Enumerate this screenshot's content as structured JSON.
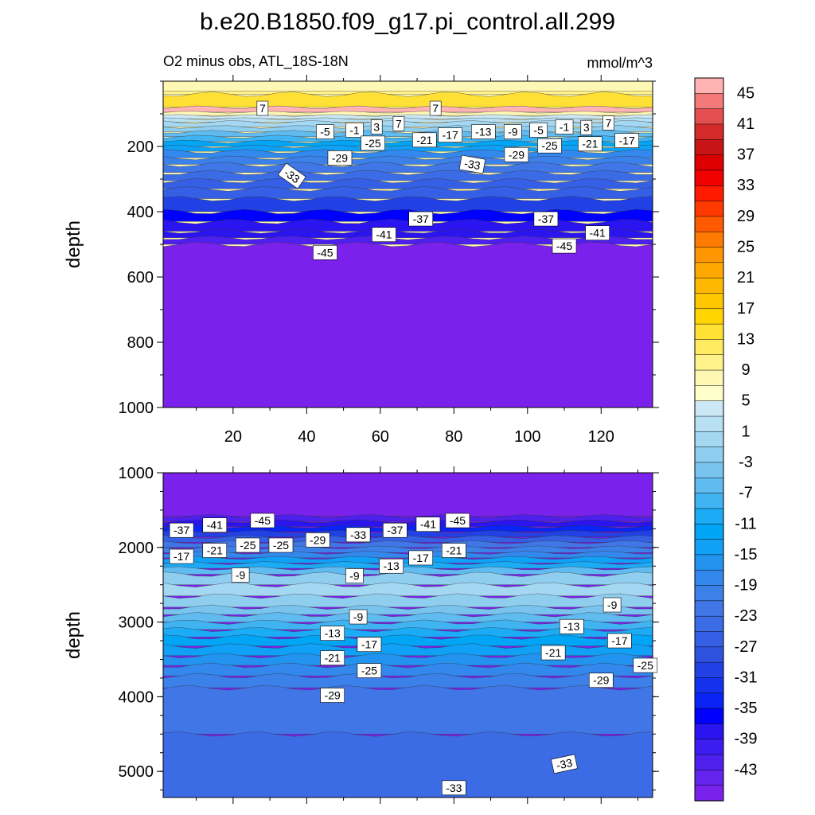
{
  "title": "b.e20.B1850.f09_g17.pi_control.all.299",
  "subtitle_left": "O2 minus obs, ATL_18S-18N",
  "subtitle_right": "mmol/m^3",
  "chart_data": [
    {
      "type": "contour",
      "panel": "upper",
      "ylabel": "depth",
      "xlim": [
        1,
        134
      ],
      "ylim": [
        0,
        1000
      ],
      "y_inverted": true,
      "x_ticks": [
        20,
        40,
        60,
        80,
        100,
        120
      ],
      "y_ticks": [
        200,
        400,
        600,
        800,
        1000
      ],
      "x_minor_step": 10,
      "y_minor_step": 100,
      "bands": [
        {
          "depth": [
            30,
            40
          ],
          "value": 9
        },
        {
          "depth": [
            40,
            80
          ],
          "value": 13
        },
        {
          "depth": [
            80,
            95
          ],
          "value": 7
        },
        {
          "depth": [
            95,
            105
          ],
          "value": 3
        },
        {
          "depth": [
            105,
            115
          ],
          "value": -1
        },
        {
          "depth": [
            115,
            125
          ],
          "value": -3
        },
        {
          "depth": [
            125,
            140
          ],
          "value": -5
        },
        {
          "depth": [
            140,
            155
          ],
          "value": -7
        },
        {
          "depth": [
            155,
            170
          ],
          "value": -11
        },
        {
          "depth": [
            170,
            185
          ],
          "value": -13
        },
        {
          "depth": [
            185,
            200
          ],
          "value": -17
        },
        {
          "depth": [
            200,
            215
          ],
          "value": -19
        },
        {
          "depth": [
            215,
            235
          ],
          "value": -23
        },
        {
          "depth": [
            235,
            255
          ],
          "value": -25
        },
        {
          "depth": [
            255,
            280
          ],
          "value": -27
        },
        {
          "depth": [
            280,
            305
          ],
          "value": -29
        },
        {
          "depth": [
            305,
            330
          ],
          "value": -31
        },
        {
          "depth": [
            330,
            360
          ],
          "value": -31
        },
        {
          "depth": [
            360,
            400
          ],
          "value": -35
        },
        {
          "depth": [
            400,
            430
          ],
          "value": -39
        },
        {
          "depth": [
            430,
            460
          ],
          "value": -41
        },
        {
          "depth": [
            460,
            480
          ],
          "value": -41
        },
        {
          "depth": [
            480,
            500
          ],
          "value": -43
        },
        {
          "depth": [
            500,
            1000
          ],
          "value": -45
        }
      ],
      "contour_labels": [
        {
          "x": 28,
          "depth": 83,
          "text": "7",
          "angle": 0
        },
        {
          "x": 75,
          "depth": 83,
          "text": "7",
          "angle": 0
        },
        {
          "x": 45,
          "depth": 155,
          "text": "-5",
          "angle": 0
        },
        {
          "x": 53,
          "depth": 150,
          "text": "-1",
          "angle": 0
        },
        {
          "x": 59,
          "depth": 140,
          "text": "3",
          "angle": 0
        },
        {
          "x": 65,
          "depth": 130,
          "text": "7",
          "angle": 0
        },
        {
          "x": 72,
          "depth": 180,
          "text": "-21",
          "angle": 0
        },
        {
          "x": 79,
          "depth": 165,
          "text": "-17",
          "angle": 0
        },
        {
          "x": 88,
          "depth": 155,
          "text": "-13",
          "angle": 0
        },
        {
          "x": 96,
          "depth": 155,
          "text": "-9",
          "angle": 0
        },
        {
          "x": 103,
          "depth": 150,
          "text": "-5",
          "angle": 0
        },
        {
          "x": 110,
          "depth": 140,
          "text": "-1",
          "angle": 0
        },
        {
          "x": 116,
          "depth": 142,
          "text": "3",
          "angle": 0
        },
        {
          "x": 122,
          "depth": 128,
          "text": "7",
          "angle": 0
        },
        {
          "x": 58,
          "depth": 190,
          "text": "-25",
          "angle": 0
        },
        {
          "x": 49,
          "depth": 235,
          "text": "-29",
          "angle": 0
        },
        {
          "x": 36,
          "depth": 290,
          "text": "-33",
          "angle": 35
        },
        {
          "x": 85,
          "depth": 255,
          "text": "-33",
          "angle": 10
        },
        {
          "x": 97,
          "depth": 225,
          "text": "-29",
          "angle": 0
        },
        {
          "x": 106,
          "depth": 198,
          "text": "-25",
          "angle": 0
        },
        {
          "x": 117,
          "depth": 192,
          "text": "-21",
          "angle": 0
        },
        {
          "x": 127,
          "depth": 182,
          "text": "-17",
          "angle": 0
        },
        {
          "x": 71,
          "depth": 422,
          "text": "-37",
          "angle": 0
        },
        {
          "x": 105,
          "depth": 422,
          "text": "-37",
          "angle": 0
        },
        {
          "x": 61,
          "depth": 470,
          "text": "-41",
          "angle": 0
        },
        {
          "x": 119,
          "depth": 465,
          "text": "-41",
          "angle": 0
        },
        {
          "x": 45,
          "depth": 525,
          "text": "-45",
          "angle": 0
        },
        {
          "x": 110,
          "depth": 505,
          "text": "-45",
          "angle": 0
        }
      ]
    },
    {
      "type": "contour",
      "panel": "lower",
      "ylabel": "depth",
      "xlim": [
        1,
        134
      ],
      "ylim": [
        1000,
        5350
      ],
      "y_inverted": true,
      "y_ticks": [
        1000,
        2000,
        3000,
        4000,
        5000
      ],
      "x_minor_step": 10,
      "y_minor_step": 250,
      "bands": [
        {
          "depth": [
            1000,
            1580
          ],
          "value": -45
        },
        {
          "depth": [
            1580,
            1650
          ],
          "value": -43
        },
        {
          "depth": [
            1650,
            1720
          ],
          "value": -41
        },
        {
          "depth": [
            1720,
            1790
          ],
          "value": -37
        },
        {
          "depth": [
            1790,
            1860
          ],
          "value": -35
        },
        {
          "depth": [
            1860,
            1930
          ],
          "value": -31
        },
        {
          "depth": [
            1930,
            2000
          ],
          "value": -27
        },
        {
          "depth": [
            2000,
            2070
          ],
          "value": -25
        },
        {
          "depth": [
            2070,
            2140
          ],
          "value": -23
        },
        {
          "depth": [
            2140,
            2210
          ],
          "value": -19
        },
        {
          "depth": [
            2210,
            2280
          ],
          "value": -15
        },
        {
          "depth": [
            2280,
            2360
          ],
          "value": -11
        },
        {
          "depth": [
            2360,
            2500
          ],
          "value": -7
        },
        {
          "depth": [
            2500,
            2650
          ],
          "value": -5
        },
        {
          "depth": [
            2650,
            2800
          ],
          "value": -7
        },
        {
          "depth": [
            2800,
            2900
          ],
          "value": -9
        },
        {
          "depth": [
            2900,
            3000
          ],
          "value": -11
        },
        {
          "depth": [
            3000,
            3100
          ],
          "value": -13
        },
        {
          "depth": [
            3100,
            3200
          ],
          "value": -15
        },
        {
          "depth": [
            3200,
            3320
          ],
          "value": -17
        },
        {
          "depth": [
            3320,
            3450
          ],
          "value": -19
        },
        {
          "depth": [
            3450,
            3580
          ],
          "value": -21
        },
        {
          "depth": [
            3580,
            3720
          ],
          "value": -23
        },
        {
          "depth": [
            3720,
            3880
          ],
          "value": -25
        },
        {
          "depth": [
            3880,
            4500
          ],
          "value": -27
        },
        {
          "depth": [
            4500,
            5350
          ],
          "value": -29
        }
      ],
      "contour_labels": [
        {
          "x": 6,
          "depth": 1770,
          "text": "-37",
          "angle": 0
        },
        {
          "x": 15,
          "depth": 1700,
          "text": "-41",
          "angle": 0
        },
        {
          "x": 28,
          "depth": 1640,
          "text": "-45",
          "angle": 0
        },
        {
          "x": 6,
          "depth": 2120,
          "text": "-17",
          "angle": 0
        },
        {
          "x": 15,
          "depth": 2040,
          "text": "-21",
          "angle": 0
        },
        {
          "x": 24,
          "depth": 1970,
          "text": "-25",
          "angle": 0
        },
        {
          "x": 33,
          "depth": 1970,
          "text": "-25",
          "angle": 0
        },
        {
          "x": 43,
          "depth": 1900,
          "text": "-29",
          "angle": 0
        },
        {
          "x": 54,
          "depth": 1830,
          "text": "-33",
          "angle": 0
        },
        {
          "x": 64,
          "depth": 1770,
          "text": "-37",
          "angle": 0
        },
        {
          "x": 73,
          "depth": 1690,
          "text": "-41",
          "angle": 0
        },
        {
          "x": 81,
          "depth": 1640,
          "text": "-45",
          "angle": 0
        },
        {
          "x": 80,
          "depth": 2040,
          "text": "-21",
          "angle": 0
        },
        {
          "x": 71,
          "depth": 2140,
          "text": "-17",
          "angle": 0
        },
        {
          "x": 63,
          "depth": 2250,
          "text": "-13",
          "angle": 0
        },
        {
          "x": 53,
          "depth": 2380,
          "text": "-9",
          "angle": 0
        },
        {
          "x": 22,
          "depth": 2370,
          "text": "-9",
          "angle": 0
        },
        {
          "x": 54,
          "depth": 2930,
          "text": "-9",
          "angle": 0
        },
        {
          "x": 47,
          "depth": 3150,
          "text": "-13",
          "angle": 0
        },
        {
          "x": 57,
          "depth": 3300,
          "text": "-17",
          "angle": 0
        },
        {
          "x": 47,
          "depth": 3480,
          "text": "-21",
          "angle": 0
        },
        {
          "x": 57,
          "depth": 3650,
          "text": "-25",
          "angle": 0
        },
        {
          "x": 47,
          "depth": 3980,
          "text": "-29",
          "angle": 0
        },
        {
          "x": 123,
          "depth": 2770,
          "text": "-9",
          "angle": 0
        },
        {
          "x": 112,
          "depth": 3060,
          "text": "-13",
          "angle": 0
        },
        {
          "x": 125,
          "depth": 3250,
          "text": "-17",
          "angle": 0
        },
        {
          "x": 107,
          "depth": 3410,
          "text": "-21",
          "angle": 0
        },
        {
          "x": 132,
          "depth": 3580,
          "text": "-25",
          "angle": 0
        },
        {
          "x": 120,
          "depth": 3780,
          "text": "-29",
          "angle": 0
        },
        {
          "x": 110,
          "depth": 4900,
          "text": "-33",
          "angle": -12
        },
        {
          "x": 80,
          "depth": 5220,
          "text": "-33",
          "angle": 0
        }
      ]
    }
  ],
  "colorbar": {
    "tick_labels": [
      "45",
      "41",
      "37",
      "33",
      "29",
      "25",
      "21",
      "17",
      "13",
      "9",
      "5",
      "1",
      "-3",
      "-7",
      "-11",
      "-15",
      "-19",
      "-23",
      "-27",
      "-31",
      "-35",
      "-39",
      "-43"
    ],
    "colors": [
      "#ffb3b3",
      "#f47a7a",
      "#e45050",
      "#d42a2a",
      "#c81414",
      "#dc0000",
      "#f00000",
      "#ff1a00",
      "#ff3a00",
      "#ff5a00",
      "#ff7a00",
      "#ff9500",
      "#ffa800",
      "#ffb800",
      "#ffc700",
      "#ffd400",
      "#ffe035",
      "#ffea60",
      "#fff28a",
      "#fff8b5",
      "#ffffcc",
      "#cce8f4",
      "#b8e0f4",
      "#a4d7f2",
      "#90cef0",
      "#78c4ee",
      "#5fbbf0",
      "#40b4f2",
      "#1cabf5",
      "#00a5f5",
      "#10a0f5",
      "#2294f0",
      "#3388ed",
      "#3c80ea",
      "#4076e6",
      "#3b6ce6",
      "#355fe4",
      "#2e52e0",
      "#2241e4",
      "#1432ee",
      "#0a24f5",
      "#0000ff",
      "#2a14f0",
      "#3c1cf0",
      "#4d20ee",
      "#6424ee",
      "#7a22ec"
    ],
    "value_map": {
      "45": 0,
      "41": 2,
      "37": 4,
      "33": 6,
      "29": 8,
      "25": 10,
      "21": 12,
      "17": 14,
      "13": 16,
      "9": 18,
      "5": 19,
      "3": 19,
      "1": 20,
      "-1": 21,
      "-3": 22,
      "-5": 23,
      "-7": 24,
      "-9": 25,
      "-11": 26,
      "-13": 27,
      "-15": 28,
      "-17": 29,
      "-19": 30,
      "-21": 31,
      "-23": 32,
      "-25": 33,
      "-27": 34,
      "-29": 35,
      "-31": 36,
      "-33": 37,
      "-35": 38,
      "-37": 40,
      "-39": 41,
      "-41": 42,
      "-43": 44,
      "-45": 46
    }
  }
}
